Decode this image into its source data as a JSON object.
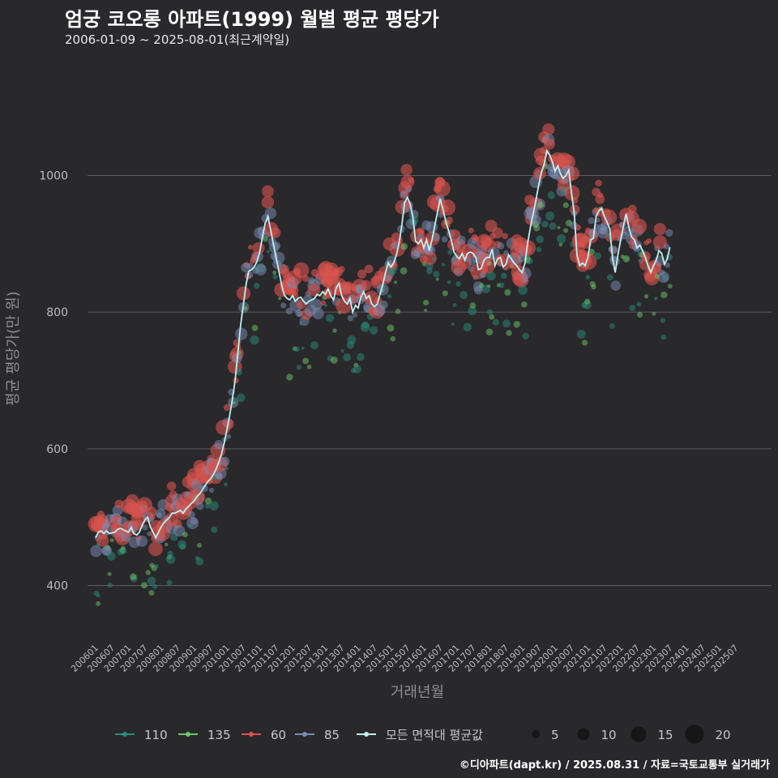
{
  "title": "엄궁 코오롱 아파트(1999) 월별 평균 평당가",
  "subtitle": "2006-01-09 ~ 2025-08-01(최근계약일)",
  "credit": "©디아파트(dapt.kr) / 2025.08.31 / 자료=국토교통부 실거래가",
  "chart_data": {
    "type": "scatter",
    "xlabel": "거래년월",
    "ylabel": "평균 평당가(만 원)",
    "ylim": [
      320,
      1150
    ],
    "yticks": [
      400,
      600,
      800,
      1000
    ],
    "xticks": [
      "200601",
      "200607",
      "200701",
      "200707",
      "200801",
      "200807",
      "200901",
      "200907",
      "201001",
      "201007",
      "201101",
      "201107",
      "201201",
      "201207",
      "201301",
      "201307",
      "201401",
      "201407",
      "201501",
      "201507",
      "201601",
      "201607",
      "201701",
      "201707",
      "201801",
      "201807",
      "201901",
      "201907",
      "202001",
      "202007",
      "202101",
      "202107",
      "202201",
      "202207",
      "202301",
      "202307",
      "202401",
      "202407",
      "202501",
      "202507"
    ],
    "colors": {
      "110": "#2a8c7c",
      "135": "#6fc86a",
      "60": "#d9534f",
      "85": "#7b8db3",
      "line": "#bff0f0"
    },
    "legend": {
      "series": [
        "110",
        "135",
        "60",
        "85",
        "모든 면적대 평균값"
      ],
      "sizes": [
        5,
        10,
        15,
        20
      ]
    },
    "avg_line": [
      470,
      478,
      480,
      476,
      480,
      476,
      477,
      478,
      482,
      484,
      482,
      480,
      478,
      485,
      476,
      474,
      478,
      488,
      496,
      500,
      486,
      478,
      470,
      478,
      486,
      492,
      496,
      500,
      506,
      506,
      508,
      510,
      506,
      512,
      516,
      520,
      524,
      530,
      534,
      540,
      546,
      552,
      556,
      562,
      570,
      580,
      592,
      608,
      628,
      648,
      672,
      700,
      740,
      780,
      810,
      840,
      860,
      862,
      866,
      874,
      888,
      910,
      930,
      940,
      920,
      900,
      880,
      860,
      840,
      825,
      820,
      818,
      824,
      816,
      820,
      822,
      816,
      812,
      816,
      818,
      820,
      826,
      824,
      830,
      826,
      834,
      824,
      818,
      836,
      842,
      824,
      816,
      812,
      820,
      800,
      810,
      806,
      822,
      830,
      820,
      824,
      812,
      808,
      812,
      826,
      840,
      858,
      872,
      866,
      872,
      884,
      902,
      928,
      960,
      968,
      958,
      940,
      904,
      900,
      906,
      894,
      906,
      890,
      906,
      926,
      946,
      966,
      950,
      934,
      920,
      906,
      888,
      882,
      878,
      886,
      876,
      886,
      888,
      886,
      880,
      862,
      864,
      876,
      880,
      880,
      892,
      868,
      878,
      880,
      866,
      870,
      884,
      878,
      872,
      868,
      862,
      858,
      872,
      902,
      924,
      944,
      964,
      986,
      1004,
      1016,
      1036,
      1030,
      1020,
      1006,
      1014,
      1002,
      996,
      1000,
      1008,
      974,
      946,
      884,
      868,
      872,
      868,
      880,
      906,
      908,
      940,
      948,
      952,
      940,
      932,
      922,
      880,
      858,
      884,
      906,
      926,
      944,
      924,
      910,
      906,
      894,
      898,
      890,
      880,
      868,
      858,
      868,
      876,
      890,
      886,
      870,
      878,
      895
    ]
  }
}
